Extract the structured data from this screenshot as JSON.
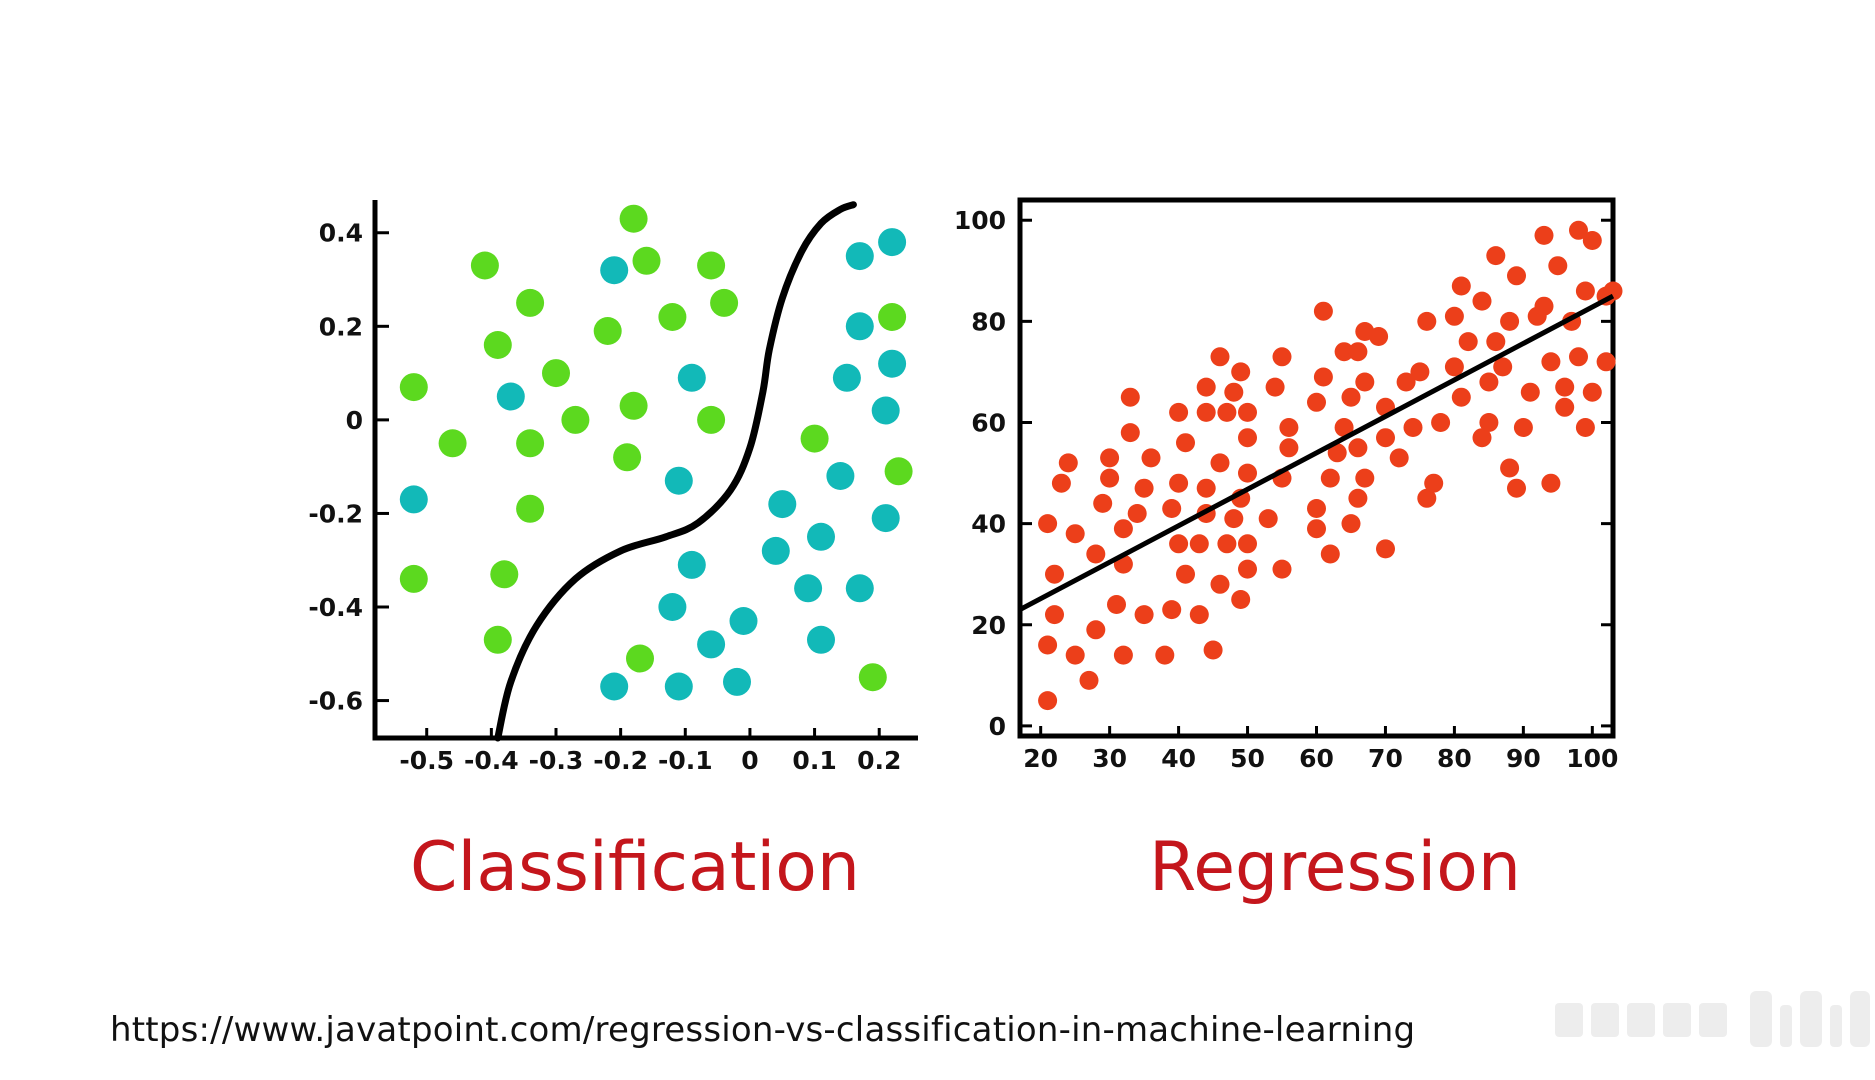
{
  "source_url": "https://www.javatpoint.com/regression-vs-classification-in-machine-learning",
  "colors": {
    "green": "#5cd91f",
    "teal": "#12b9b8",
    "red": "#ec3f1a",
    "caption": "#c4161c",
    "axis": "#000000"
  },
  "chart_data": [
    {
      "type": "scatter",
      "caption": "Classification",
      "title": "",
      "xlabel": "",
      "ylabel": "",
      "xlim": [
        -0.58,
        0.26
      ],
      "ylim": [
        -0.68,
        0.47
      ],
      "x_ticks": [
        -0.5,
        -0.4,
        -0.3,
        -0.2,
        -0.1,
        0,
        0.1,
        0.2
      ],
      "x_tick_labels": [
        "-0.5",
        "-0.4",
        "-0.3",
        "-0.2",
        "-0.1",
        "0",
        "0.1",
        "0.2"
      ],
      "y_ticks": [
        0.4,
        0.2,
        0,
        -0.2,
        -0.4,
        -0.6
      ],
      "y_tick_labels": [
        "0.4",
        "0.2",
        "0",
        "-0.2",
        "-0.4",
        "-0.6"
      ],
      "grid": false,
      "decision_boundary": [
        [
          -0.39,
          -0.68
        ],
        [
          -0.37,
          -0.56
        ],
        [
          -0.33,
          -0.44
        ],
        [
          -0.27,
          -0.34
        ],
        [
          -0.2,
          -0.28
        ],
        [
          -0.13,
          -0.25
        ],
        [
          -0.08,
          -0.22
        ],
        [
          -0.03,
          -0.15
        ],
        [
          0.0,
          -0.06
        ],
        [
          0.02,
          0.06
        ],
        [
          0.03,
          0.15
        ],
        [
          0.05,
          0.26
        ],
        [
          0.08,
          0.36
        ],
        [
          0.11,
          0.42
        ],
        [
          0.14,
          0.45
        ],
        [
          0.16,
          0.46
        ]
      ],
      "series": [
        {
          "color": "#5cd91f",
          "points": [
            [
              -0.18,
              0.43
            ],
            [
              -0.41,
              0.33
            ],
            [
              -0.16,
              0.34
            ],
            [
              -0.06,
              0.33
            ],
            [
              -0.34,
              0.25
            ],
            [
              -0.04,
              0.25
            ],
            [
              -0.12,
              0.22
            ],
            [
              -0.22,
              0.19
            ],
            [
              0.22,
              0.22
            ],
            [
              -0.39,
              0.16
            ],
            [
              -0.3,
              0.1
            ],
            [
              -0.52,
              0.07
            ],
            [
              -0.18,
              0.03
            ],
            [
              -0.27,
              0.0
            ],
            [
              -0.06,
              0.0
            ],
            [
              -0.46,
              -0.05
            ],
            [
              -0.34,
              -0.05
            ],
            [
              -0.19,
              -0.08
            ],
            [
              0.1,
              -0.04
            ],
            [
              0.23,
              -0.11
            ],
            [
              -0.34,
              -0.19
            ],
            [
              -0.52,
              -0.34
            ],
            [
              -0.38,
              -0.33
            ],
            [
              -0.39,
              -0.47
            ],
            [
              -0.17,
              -0.51
            ],
            [
              0.19,
              -0.55
            ]
          ]
        },
        {
          "color": "#12b9b8",
          "points": [
            [
              -0.21,
              0.32
            ],
            [
              0.22,
              0.38
            ],
            [
              0.17,
              0.35
            ],
            [
              0.17,
              0.2
            ],
            [
              0.22,
              0.12
            ],
            [
              0.15,
              0.09
            ],
            [
              -0.09,
              0.09
            ],
            [
              -0.37,
              0.05
            ],
            [
              0.21,
              0.02
            ],
            [
              -0.11,
              -0.13
            ],
            [
              0.14,
              -0.12
            ],
            [
              -0.52,
              -0.17
            ],
            [
              0.05,
              -0.18
            ],
            [
              0.21,
              -0.21
            ],
            [
              0.11,
              -0.25
            ],
            [
              0.04,
              -0.28
            ],
            [
              -0.09,
              -0.31
            ],
            [
              0.09,
              -0.36
            ],
            [
              0.17,
              -0.36
            ],
            [
              -0.12,
              -0.4
            ],
            [
              -0.01,
              -0.43
            ],
            [
              -0.06,
              -0.48
            ],
            [
              0.11,
              -0.47
            ],
            [
              -0.21,
              -0.57
            ],
            [
              -0.11,
              -0.57
            ],
            [
              -0.02,
              -0.56
            ]
          ]
        }
      ]
    },
    {
      "type": "scatter",
      "caption": "Regression",
      "title": "",
      "xlabel": "",
      "ylabel": "",
      "xlim": [
        17,
        103
      ],
      "ylim": [
        -2,
        104
      ],
      "x_ticks": [
        20,
        30,
        40,
        50,
        60,
        70,
        80,
        90,
        100
      ],
      "x_tick_labels": [
        "20",
        "30",
        "40",
        "50",
        "60",
        "70",
        "80",
        "90",
        "100"
      ],
      "y_ticks": [
        100,
        80,
        60,
        40,
        20,
        0
      ],
      "y_tick_labels": [
        "100",
        "80",
        "60",
        "40",
        "20",
        "0"
      ],
      "grid": false,
      "fit_line": [
        [
          17,
          23
        ],
        [
          103,
          85
        ]
      ],
      "series": [
        {
          "color": "#ec3f1a",
          "points": [
            [
              21,
              5
            ],
            [
              21,
              16
            ],
            [
              22,
              22
            ],
            [
              22,
              30
            ],
            [
              21,
              40
            ],
            [
              23,
              48
            ],
            [
              24,
              52
            ],
            [
              25,
              14
            ],
            [
              25,
              38
            ],
            [
              27,
              9
            ],
            [
              28,
              19
            ],
            [
              28,
              34
            ],
            [
              29,
              44
            ],
            [
              30,
              53
            ],
            [
              30,
              49
            ],
            [
              31,
              24
            ],
            [
              32,
              14
            ],
            [
              32,
              32
            ],
            [
              32,
              39
            ],
            [
              33,
              58
            ],
            [
              33,
              65
            ],
            [
              34,
              42
            ],
            [
              35,
              22
            ],
            [
              35,
              47
            ],
            [
              36,
              53
            ],
            [
              38,
              14
            ],
            [
              39,
              23
            ],
            [
              39,
              43
            ],
            [
              40,
              36
            ],
            [
              40,
              48
            ],
            [
              40,
              62
            ],
            [
              41,
              30
            ],
            [
              41,
              56
            ],
            [
              43,
              22
            ],
            [
              43,
              36
            ],
            [
              44,
              42
            ],
            [
              44,
              47
            ],
            [
              44,
              62
            ],
            [
              44,
              67
            ],
            [
              45,
              15
            ],
            [
              46,
              28
            ],
            [
              46,
              52
            ],
            [
              46,
              73
            ],
            [
              47,
              36
            ],
            [
              47,
              62
            ],
            [
              48,
              41
            ],
            [
              48,
              66
            ],
            [
              49,
              25
            ],
            [
              49,
              45
            ],
            [
              49,
              70
            ],
            [
              50,
              31
            ],
            [
              50,
              36
            ],
            [
              50,
              50
            ],
            [
              50,
              57
            ],
            [
              50,
              62
            ],
            [
              53,
              41
            ],
            [
              54,
              67
            ],
            [
              55,
              31
            ],
            [
              55,
              49
            ],
            [
              55,
              73
            ],
            [
              56,
              55
            ],
            [
              56,
              59
            ],
            [
              60,
              39
            ],
            [
              60,
              43
            ],
            [
              60,
              64
            ],
            [
              61,
              69
            ],
            [
              61,
              82
            ],
            [
              62,
              34
            ],
            [
              62,
              49
            ],
            [
              63,
              54
            ],
            [
              64,
              59
            ],
            [
              64,
              74
            ],
            [
              65,
              40
            ],
            [
              65,
              65
            ],
            [
              66,
              45
            ],
            [
              66,
              55
            ],
            [
              66,
              74
            ],
            [
              67,
              49
            ],
            [
              67,
              68
            ],
            [
              67,
              78
            ],
            [
              69,
              77
            ],
            [
              70,
              35
            ],
            [
              70,
              57
            ],
            [
              70,
              63
            ],
            [
              72,
              53
            ],
            [
              73,
              68
            ],
            [
              74,
              59
            ],
            [
              75,
              70
            ],
            [
              76,
              80
            ],
            [
              76,
              45
            ],
            [
              77,
              48
            ],
            [
              78,
              60
            ],
            [
              80,
              71
            ],
            [
              80,
              81
            ],
            [
              81,
              65
            ],
            [
              81,
              87
            ],
            [
              82,
              76
            ],
            [
              84,
              57
            ],
            [
              84,
              84
            ],
            [
              85,
              60
            ],
            [
              85,
              68
            ],
            [
              86,
              76
            ],
            [
              86,
              93
            ],
            [
              87,
              71
            ],
            [
              88,
              51
            ],
            [
              88,
              80
            ],
            [
              89,
              47
            ],
            [
              89,
              89
            ],
            [
              90,
              59
            ],
            [
              91,
              66
            ],
            [
              92,
              81
            ],
            [
              93,
              97
            ],
            [
              93,
              83
            ],
            [
              94,
              48
            ],
            [
              94,
              72
            ],
            [
              95,
              91
            ],
            [
              96,
              67
            ],
            [
              96,
              63
            ],
            [
              97,
              80
            ],
            [
              98,
              98
            ],
            [
              98,
              73
            ],
            [
              99,
              59
            ],
            [
              99,
              86
            ],
            [
              100,
              96
            ],
            [
              100,
              66
            ],
            [
              102,
              85
            ],
            [
              102,
              72
            ],
            [
              103,
              86
            ]
          ]
        }
      ]
    }
  ]
}
